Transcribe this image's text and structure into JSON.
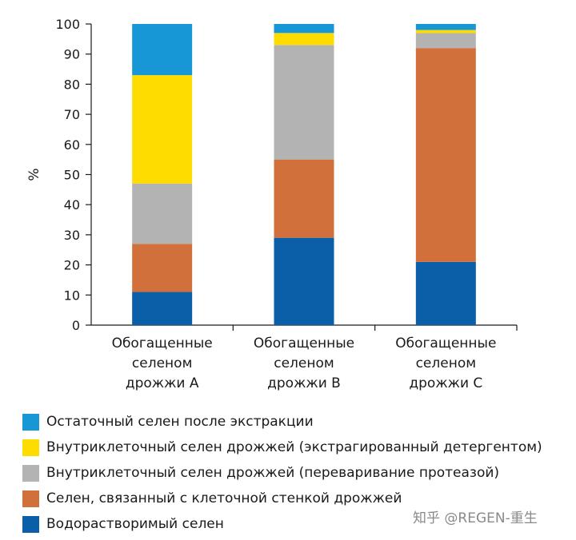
{
  "chart_data": {
    "type": "stacked_bar",
    "ylabel": "%",
    "ylim": [
      0,
      100
    ],
    "yticks": [
      "0",
      "10",
      "20",
      "30",
      "40",
      "50",
      "60",
      "70",
      "80",
      "90",
      "100"
    ],
    "categories": [
      [
        "Обогащенные",
        "селеном",
        "дрожжи А"
      ],
      [
        "Обогащенные",
        "селеном",
        "дрожжи B"
      ],
      [
        "Обогащенные",
        "селеном",
        "дрожжи С"
      ]
    ],
    "series": [
      {
        "name": "Водорастворимый селен",
        "color": "#0a5fa8",
        "values": [
          11,
          29,
          21
        ]
      },
      {
        "name": "Селен, связанный с клеточной стенкой дрожжей",
        "color": "#d2703c",
        "values": [
          16,
          26,
          71
        ]
      },
      {
        "name": "Внутриклеточный селен дрожжей (переваривание протеазой)",
        "color": "#b3b3b3",
        "values": [
          20,
          38,
          5
        ]
      },
      {
        "name": "Внутриклеточный селен дрожжей (экстрагированный детергентом)",
        "color": "#ffdc00",
        "values": [
          36,
          4,
          1
        ]
      },
      {
        "name": "Остаточный селен после экстракции",
        "color": "#1797d6",
        "values": [
          17,
          3,
          2
        ]
      }
    ],
    "legend_order": [
      4,
      3,
      2,
      1,
      0
    ]
  },
  "watermark": "知乎 @REGEN-重生"
}
